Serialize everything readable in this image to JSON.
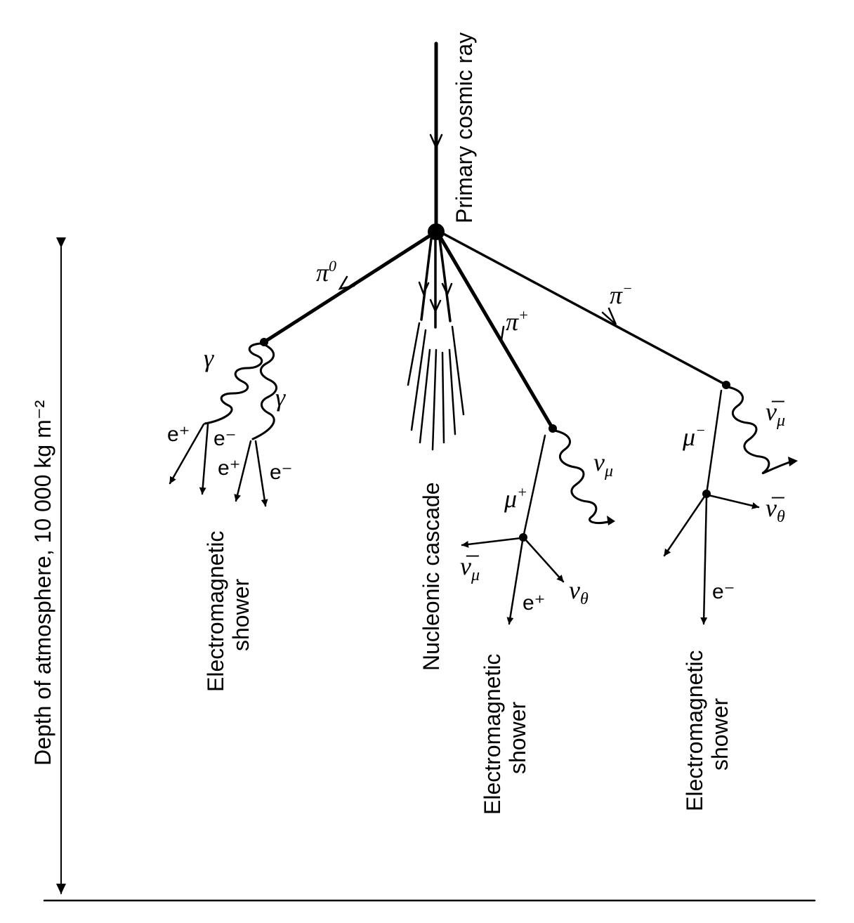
{
  "labels": {
    "primary": "Primary cosmic ray",
    "depth": "Depth of atmosphere, 10 000 kg m⁻²",
    "nucleonic": "Nucleonic cascade",
    "em_line1": "Electromagnetic",
    "em_line2": "shower",
    "pi0": "π",
    "pi0_sup": "0",
    "pi_plus": "π",
    "pi_plus_sup": "+",
    "pi_minus": "π",
    "pi_minus_sup": "−",
    "gamma": "γ",
    "e_plus": "e⁺",
    "e_minus": "e⁻",
    "mu_plus": "μ",
    "mu_plus_sup": "+",
    "mu_minus": "μ",
    "mu_minus_sup": "−",
    "nu": "ν",
    "nu_bar": "ν̅",
    "sub_mu": "μ",
    "sub_theta": "θ"
  }
}
